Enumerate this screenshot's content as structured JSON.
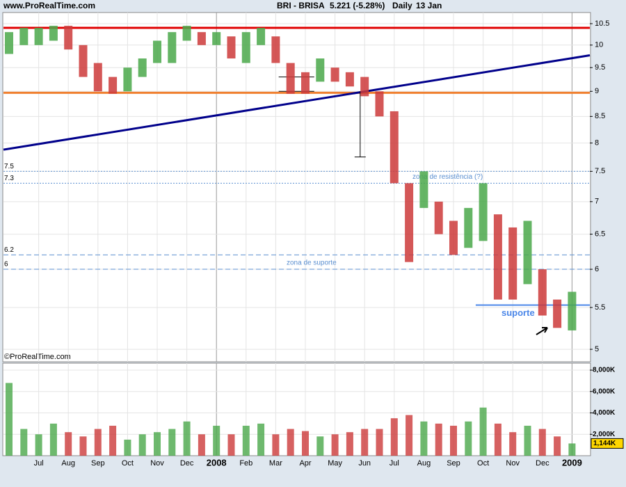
{
  "header": {
    "site": "www.ProRealTime.com",
    "symbol": "BRI - BRISA",
    "quote": "5.221 (-5.28%)",
    "period": "Daily",
    "date": "13 Jan",
    "copyright": "©ProRealTime.com"
  },
  "chart_data": [
    {
      "type": "range-bar",
      "log_scale": true,
      "grid": true,
      "categories": [
        null,
        null,
        "Jul",
        null,
        "Aug",
        null,
        "Sep",
        null,
        "Oct",
        null,
        "Nov",
        null,
        "Dec",
        null,
        "2008",
        null,
        "Feb",
        null,
        "Mar",
        null,
        "Apr",
        null,
        "May",
        null,
        "Jun",
        null,
        "Jul",
        null,
        "Aug",
        null,
        "Sep",
        null,
        "Oct",
        null,
        "Nov",
        null,
        "Dec",
        null,
        "2009"
      ],
      "series": [
        {
          "name": "low",
          "values": [
            9.8,
            10.0,
            10.0,
            10.1,
            9.9,
            9.3,
            9.0,
            8.95,
            9.0,
            9.3,
            9.6,
            9.6,
            10.1,
            10.0,
            10.0,
            9.7,
            9.6,
            10.0,
            9.6,
            8.95,
            8.95,
            9.2,
            9.2,
            9.1,
            8.9,
            8.5,
            7.3,
            6.1,
            6.9,
            6.5,
            6.2,
            6.3,
            6.4,
            5.6,
            5.6,
            5.8,
            5.4,
            5.25,
            5.22
          ]
        },
        {
          "name": "high",
          "values": [
            10.3,
            10.4,
            10.4,
            10.45,
            10.45,
            10.0,
            9.6,
            9.3,
            9.5,
            9.7,
            10.1,
            10.3,
            10.45,
            10.3,
            10.3,
            10.2,
            10.3,
            10.4,
            10.2,
            9.6,
            9.4,
            9.7,
            9.5,
            9.4,
            9.3,
            9.0,
            8.6,
            7.3,
            7.5,
            7.0,
            6.7,
            6.9,
            7.3,
            6.8,
            6.6,
            6.7,
            6.0,
            5.6,
            5.7
          ]
        }
      ],
      "up_color": "#4aa84a",
      "down_color": "#cc3a3a",
      "ylim": [
        4.86,
        10.77
      ],
      "yticks": [
        5,
        5.5,
        6,
        6.5,
        7,
        7.5,
        8,
        8.5,
        9,
        9.5,
        10,
        10.5
      ],
      "resistance": {
        "value": 10.4,
        "color": "#e00000"
      },
      "support": {
        "value": 8.97,
        "color": "#f08030"
      },
      "trendline": {
        "start": 7.88,
        "end": 9.77,
        "color": "#00008b"
      },
      "levels": [
        7.5,
        7.3,
        6.2,
        6
      ],
      "level_color": "#5b8fd0",
      "resistance_zone": "zona de resistência (?)",
      "support_zone": "zona de suporte",
      "suporte": {
        "value": 5.53,
        "label": "suporte"
      },
      "channel": [
        9.3,
        9.0
      ],
      "drop": [
        9.0,
        7.75
      ]
    },
    {
      "type": "volume-bar",
      "values": [
        6800,
        2500,
        2000,
        3000,
        2200,
        1800,
        2500,
        2800,
        1500,
        2000,
        2200,
        2500,
        3200,
        2000,
        2800,
        2000,
        2800,
        3000,
        2000,
        2500,
        2300,
        1800,
        2000,
        2200,
        2500,
        2500,
        3500,
        3800,
        3200,
        3000,
        2800,
        3200,
        4500,
        3000,
        2200,
        2800,
        2500,
        1800,
        1144
      ],
      "last_label": "1,144K",
      "ylim": [
        0,
        8650
      ],
      "yticks": [
        {
          "value": 2000,
          "label": "2,000K"
        },
        {
          "value": 4000,
          "label": "4,000K"
        },
        {
          "value": 6000,
          "label": "6,000K"
        },
        {
          "value": 8000,
          "label": "8,000K"
        }
      ]
    }
  ]
}
